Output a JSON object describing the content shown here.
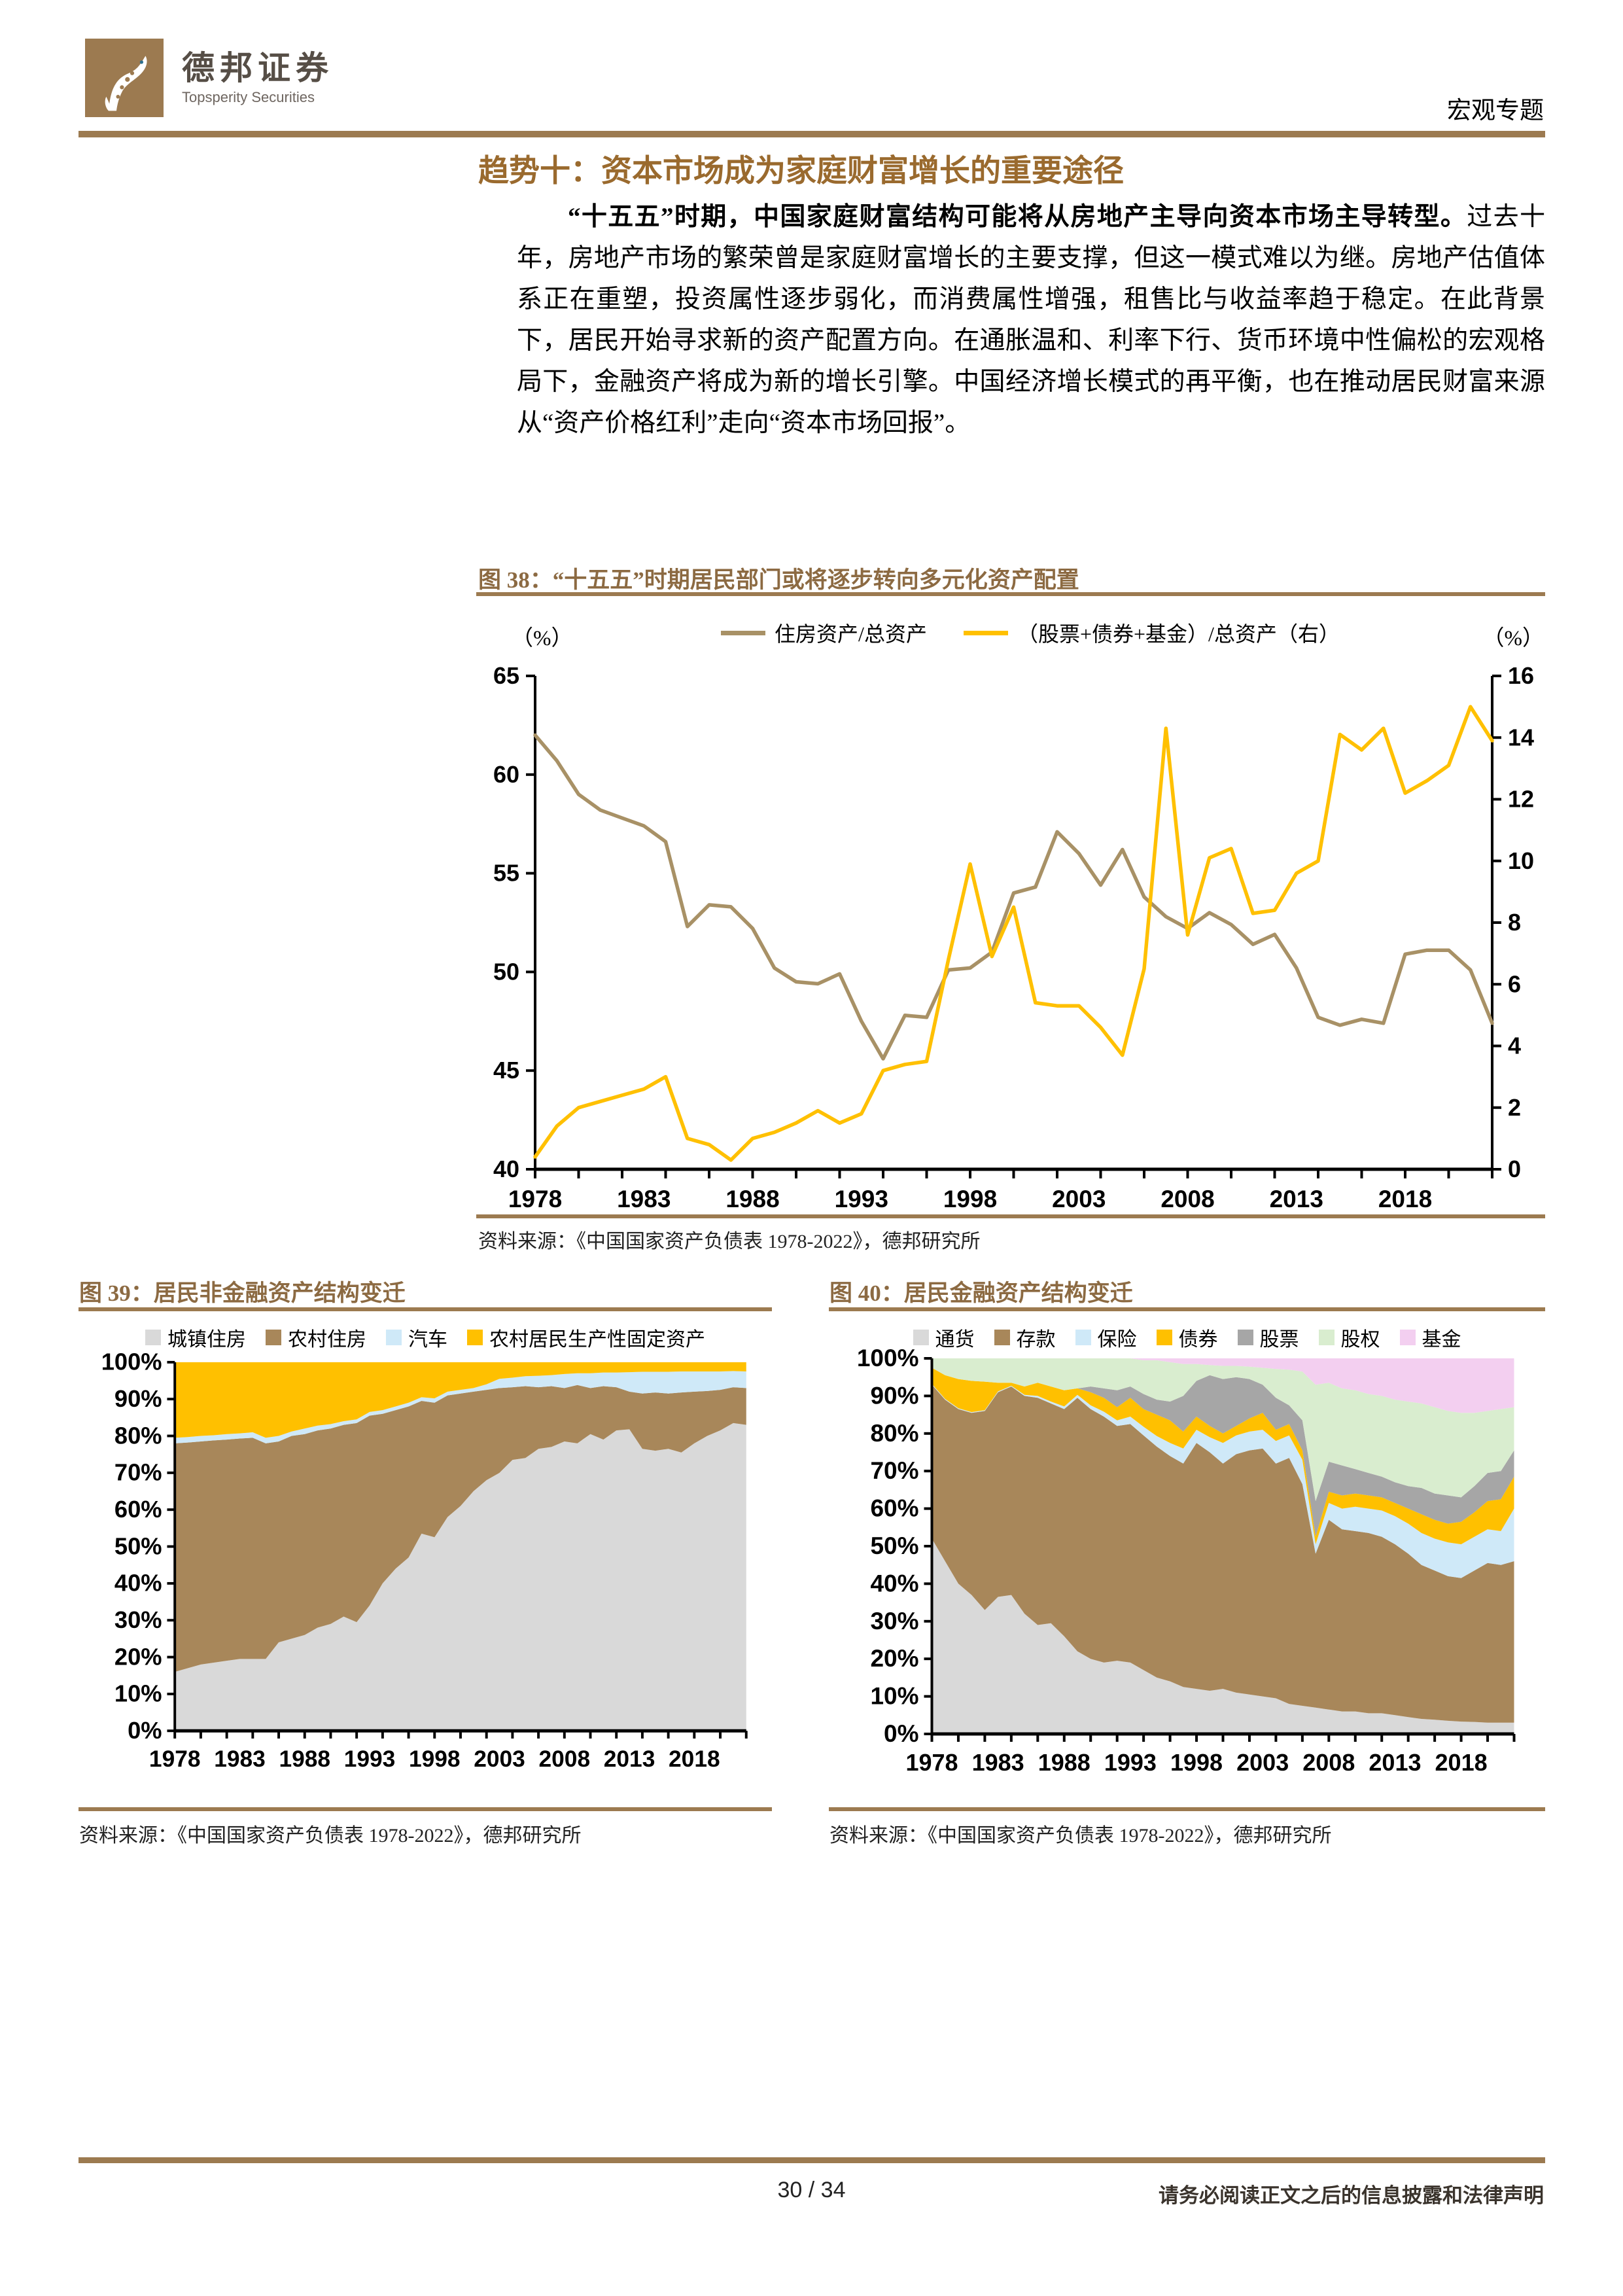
{
  "header": {
    "brand_cn": "德邦证券",
    "brand_en": "Topsperity Securities",
    "doc_type": "宏观专题"
  },
  "title": "趋势十：资本市场成为家庭财富增长的重要途径",
  "paragraph": {
    "lead": "“十五五”时期，中国家庭财富结构可能将从房地产主导向资本市场主导转型。",
    "rest": "过去十年，房地产市场的繁荣曾是家庭财富增长的主要支撑，但这一模式难以为继。房地产估值体系正在重塑，投资属性逐步弱化，而消费属性增强，租售比与收益率趋于稳定。在此背景下，居民开始寻求新的资产配置方向。在通胀温和、利率下行、货币环境中性偏松的宏观格局下，金融资产将成为新的增长引擎。中国经济增长模式的再平衡，也在推动居民财富来源从“资产价格红利”走向“资本市场回报”。"
  },
  "figure38": {
    "title": "图 38：“十五五”时期居民部门或将逐步转向多元化资产配置",
    "unit_left": "（%）",
    "unit_right": "（%）",
    "source": "资料来源：《中国国家资产负债表 1978-2022》，德邦研究所"
  },
  "figure39": {
    "title": "图 39：居民非金融资产结构变迁",
    "source": "资料来源：《中国国家资产负债表 1978-2022》，德邦研究所"
  },
  "figure40": {
    "title": "图 40：居民金融资产结构变迁",
    "source": "资料来源：《中国国家资产负债表 1978-2022》，德邦研究所"
  },
  "footer": {
    "page_number": "30 / 34",
    "disclaimer": "请务必阅读正文之后的信息披露和法律声明"
  },
  "colors": {
    "rule_brown": "#9c7a50",
    "title_brown": "#9a6a2e",
    "fig_title_brown": "#8c6a42",
    "gold": "#ffc000",
    "line_brown": "#a89166",
    "area_brown": "#a8875a",
    "light_gray": "#d9d9d9",
    "light_blue": "#cfe9f8",
    "mid_gray": "#a6a6a6",
    "pale_green": "#d9edcf",
    "pale_pink": "#f3cff0"
  },
  "chart_data": [
    {
      "id": "fig38",
      "type": "line",
      "dual_axis": true,
      "x_range": [
        1978,
        2022
      ],
      "x_tick_labels": [
        1978,
        1983,
        1988,
        1993,
        1998,
        2003,
        2008,
        2013,
        2018
      ],
      "minor_tick_step": 2,
      "y_left": {
        "min": 40,
        "max": 65,
        "step": 5
      },
      "y_right": {
        "min": 0,
        "max": 16,
        "step": 2
      },
      "grid": false,
      "legend_position": "top",
      "series": [
        {
          "name": "住房资产/总资产",
          "axis": "left",
          "color": "#a89166",
          "values": [
            62.0,
            60.7,
            59.0,
            58.2,
            57.8,
            57.4,
            56.6,
            52.3,
            53.4,
            53.3,
            52.2,
            50.2,
            49.5,
            49.4,
            49.9,
            47.5,
            45.6,
            47.8,
            47.7,
            50.1,
            50.2,
            51.0,
            54.0,
            54.3,
            57.1,
            56.0,
            54.4,
            56.2,
            53.8,
            52.8,
            52.2,
            53.0,
            52.4,
            51.4,
            51.9,
            50.2,
            47.7,
            47.3,
            47.6,
            47.4,
            50.9,
            51.1,
            51.1,
            50.1,
            47.4
          ]
        },
        {
          "name": "（股票+债券+基金）/总资产（右）",
          "axis": "right",
          "color": "#ffc000",
          "values": [
            0.4,
            1.4,
            2.0,
            2.2,
            2.4,
            2.6,
            3.0,
            1.0,
            0.8,
            0.3,
            1.0,
            1.2,
            1.5,
            1.9,
            1.5,
            1.8,
            3.2,
            3.4,
            3.5,
            6.8,
            9.9,
            6.9,
            8.5,
            5.4,
            5.3,
            5.3,
            4.6,
            3.7,
            6.5,
            14.3,
            7.6,
            10.1,
            10.4,
            8.3,
            8.4,
            9.6,
            10.0,
            14.1,
            13.6,
            14.3,
            12.2,
            12.6,
            13.1,
            15.0,
            13.9
          ]
        }
      ]
    },
    {
      "id": "fig39",
      "type": "area",
      "stacked_percent": true,
      "x_range": [
        1978,
        2022
      ],
      "x_tick_labels": [
        1978,
        1983,
        1988,
        1993,
        1998,
        2003,
        2008,
        2013,
        2018
      ],
      "minor_tick_step": 2,
      "y": {
        "min": 0,
        "max": 100,
        "step": 10,
        "suffix": "%"
      },
      "legend_position": "top",
      "series": [
        {
          "name": "城镇住房",
          "color": "#d9d9d9",
          "values": [
            16,
            17,
            18,
            18.5,
            19,
            19.5,
            19.5,
            19.5,
            24,
            25,
            26,
            28,
            29,
            31,
            29.5,
            34,
            40,
            44,
            47,
            53.5,
            52.5,
            58,
            61,
            65,
            68,
            70,
            73.5,
            74,
            76.5,
            77,
            78.5,
            78,
            80.5,
            79,
            81.5,
            81.8,
            76.5,
            76,
            76.5,
            75.5,
            78,
            80,
            81.5,
            83.5,
            83
          ]
        },
        {
          "name": "农村住房",
          "color": "#a8875a",
          "values": [
            62,
            61.2,
            60.5,
            60.3,
            60,
            59.8,
            60,
            58.5,
            54.5,
            55,
            54.5,
            53.5,
            53,
            52,
            54,
            51.5,
            46,
            43,
            41,
            36,
            36.5,
            33,
            30.5,
            27,
            24.5,
            23,
            19.7,
            19.5,
            16.7,
            16.5,
            14.5,
            15.8,
            12.5,
            14.5,
            11.7,
            10.2,
            15,
            15.8,
            15,
            16.3,
            14,
            12.2,
            11,
            9.7,
            10
          ]
        },
        {
          "name": "汽车",
          "color": "#cfe9f8",
          "values": [
            1.5,
            1.5,
            1.5,
            1.4,
            1.5,
            1.4,
            1.5,
            1.5,
            1.5,
            1.2,
            1.5,
            1.3,
            1.2,
            1,
            1,
            1,
            1,
            1,
            1,
            1,
            1.2,
            1,
            1,
            1,
            1.5,
            2.5,
            2.6,
            2.7,
            3.1,
            3,
            3.8,
            3.2,
            4,
            3.7,
            4,
            5.3,
            5.9,
            5.6,
            5.9,
            5.7,
            5.5,
            5.3,
            5,
            4.4,
            4.5
          ]
        },
        {
          "name": "农村居民生产性固定资产",
          "color": "#ffc000",
          "values": [
            20.5,
            20.3,
            20,
            19.8,
            19.5,
            19.3,
            19,
            20.5,
            20,
            18.8,
            18,
            17.2,
            16.8,
            16,
            15.5,
            13.5,
            13,
            12,
            11,
            9.5,
            9.8,
            8,
            7.5,
            7,
            6,
            4.5,
            4.2,
            3.8,
            3.7,
            3.5,
            3.2,
            3,
            3,
            2.8,
            2.8,
            2.7,
            2.6,
            2.6,
            2.6,
            2.5,
            2.5,
            2.5,
            2.5,
            2.4,
            2.5
          ]
        }
      ]
    },
    {
      "id": "fig40",
      "type": "area",
      "stacked_percent": true,
      "x_range": [
        1978,
        2022
      ],
      "x_tick_labels": [
        1978,
        1983,
        1988,
        1993,
        1998,
        2003,
        2008,
        2013,
        2018
      ],
      "minor_tick_step": 2,
      "y": {
        "min": 0,
        "max": 100,
        "step": 10,
        "suffix": "%"
      },
      "legend_position": "top",
      "series": [
        {
          "name": "通货",
          "color": "#d9d9d9",
          "values": [
            52,
            46,
            40,
            37,
            33,
            36.5,
            37,
            32,
            29,
            29.5,
            26,
            22,
            20,
            19,
            19.5,
            19,
            17,
            15,
            14,
            12.5,
            12,
            11.5,
            12,
            11,
            10.5,
            10,
            9.5,
            8,
            7.5,
            7,
            6.5,
            6,
            6,
            5.5,
            5.5,
            5,
            4.5,
            4,
            3.8,
            3.5,
            3.3,
            3.2,
            3,
            3,
            3
          ]
        },
        {
          "name": "存款",
          "color": "#a8875a",
          "values": [
            41,
            43,
            46.5,
            48.5,
            53,
            54.5,
            55.5,
            58,
            60.5,
            58.5,
            60.5,
            67.5,
            66.5,
            65.5,
            62.5,
            63.5,
            62.5,
            61.5,
            60,
            59.5,
            65.5,
            63.5,
            60,
            63.5,
            65,
            66,
            62.5,
            65.5,
            59,
            41,
            50.5,
            48.5,
            48,
            48,
            47,
            45.5,
            43.5,
            41,
            39.7,
            38.5,
            38.2,
            40.3,
            42.5,
            42,
            43
          ]
        },
        {
          "name": "保险",
          "color": "#cfe9f8",
          "values": [
            0.2,
            0.2,
            0.2,
            0.2,
            0.2,
            0.2,
            0.2,
            0.3,
            0.5,
            0.5,
            0.7,
            0.8,
            1,
            1.3,
            1.5,
            2,
            2.3,
            2.8,
            3.5,
            4,
            3.5,
            4,
            5.5,
            5,
            5,
            5,
            6,
            6,
            6.5,
            2.5,
            4.5,
            5.5,
            6.5,
            6.5,
            7,
            7.5,
            8,
            8.5,
            8.5,
            9,
            9,
            9,
            9,
            9,
            14
          ]
        },
        {
          "name": "债券",
          "color": "#ffc000",
          "values": [
            4.3,
            6.3,
            7.8,
            8.3,
            7.6,
            2.3,
            0.8,
            2.2,
            3.5,
            4,
            4.3,
            1.7,
            3.5,
            3.7,
            3.5,
            5,
            4.7,
            5.7,
            6,
            4.5,
            3.5,
            3,
            2.5,
            2.5,
            3.5,
            4.5,
            3,
            3,
            2.5,
            2,
            3,
            3.5,
            3.5,
            3.5,
            3.5,
            3.5,
            4,
            5,
            5,
            5,
            6,
            6.5,
            7.5,
            8.5,
            8.5
          ]
        },
        {
          "name": "股票",
          "color": "#a6a6a6",
          "values": [
            0,
            0,
            0,
            0,
            0,
            0,
            0,
            0,
            0,
            0,
            0,
            0,
            1.5,
            2.5,
            4.5,
            3,
            4,
            4,
            5,
            9.5,
            9.5,
            13.5,
            14.5,
            13,
            10.5,
            7.5,
            8.5,
            5,
            8,
            9.5,
            8,
            8,
            6.5,
            6,
            5.5,
            5.5,
            6,
            7,
            7,
            7.5,
            6.5,
            7,
            7.5,
            7.5,
            7
          ]
        },
        {
          "name": "股权",
          "color": "#d9edcf",
          "values": [
            2.5,
            4.5,
            5.5,
            6,
            6.2,
            6.5,
            6.5,
            7.5,
            6.5,
            7.5,
            8.5,
            8,
            7.5,
            8,
            8.5,
            7.5,
            9,
            10.5,
            10.5,
            8.5,
            4.5,
            2.7,
            3.5,
            3,
            3.3,
            4.5,
            7.7,
            9.5,
            13,
            31,
            21,
            20.5,
            21,
            21,
            21.5,
            22,
            22.5,
            22.5,
            23,
            22.5,
            22.5,
            19.5,
            16.5,
            16.5,
            11.5
          ]
        },
        {
          "name": "基金",
          "color": "#f3cff0",
          "values": [
            0,
            0,
            0,
            0,
            0,
            0,
            0,
            0,
            0,
            0,
            0,
            0,
            0,
            0,
            0,
            0,
            0.5,
            0.5,
            1,
            1.5,
            1.5,
            1.8,
            2,
            2,
            2.2,
            2.5,
            2.8,
            3,
            3.5,
            7,
            6.5,
            8,
            8.5,
            9.5,
            10,
            11,
            11.5,
            12,
            13,
            14,
            14.5,
            14.5,
            14,
            13.5,
            13
          ]
        }
      ]
    }
  ]
}
